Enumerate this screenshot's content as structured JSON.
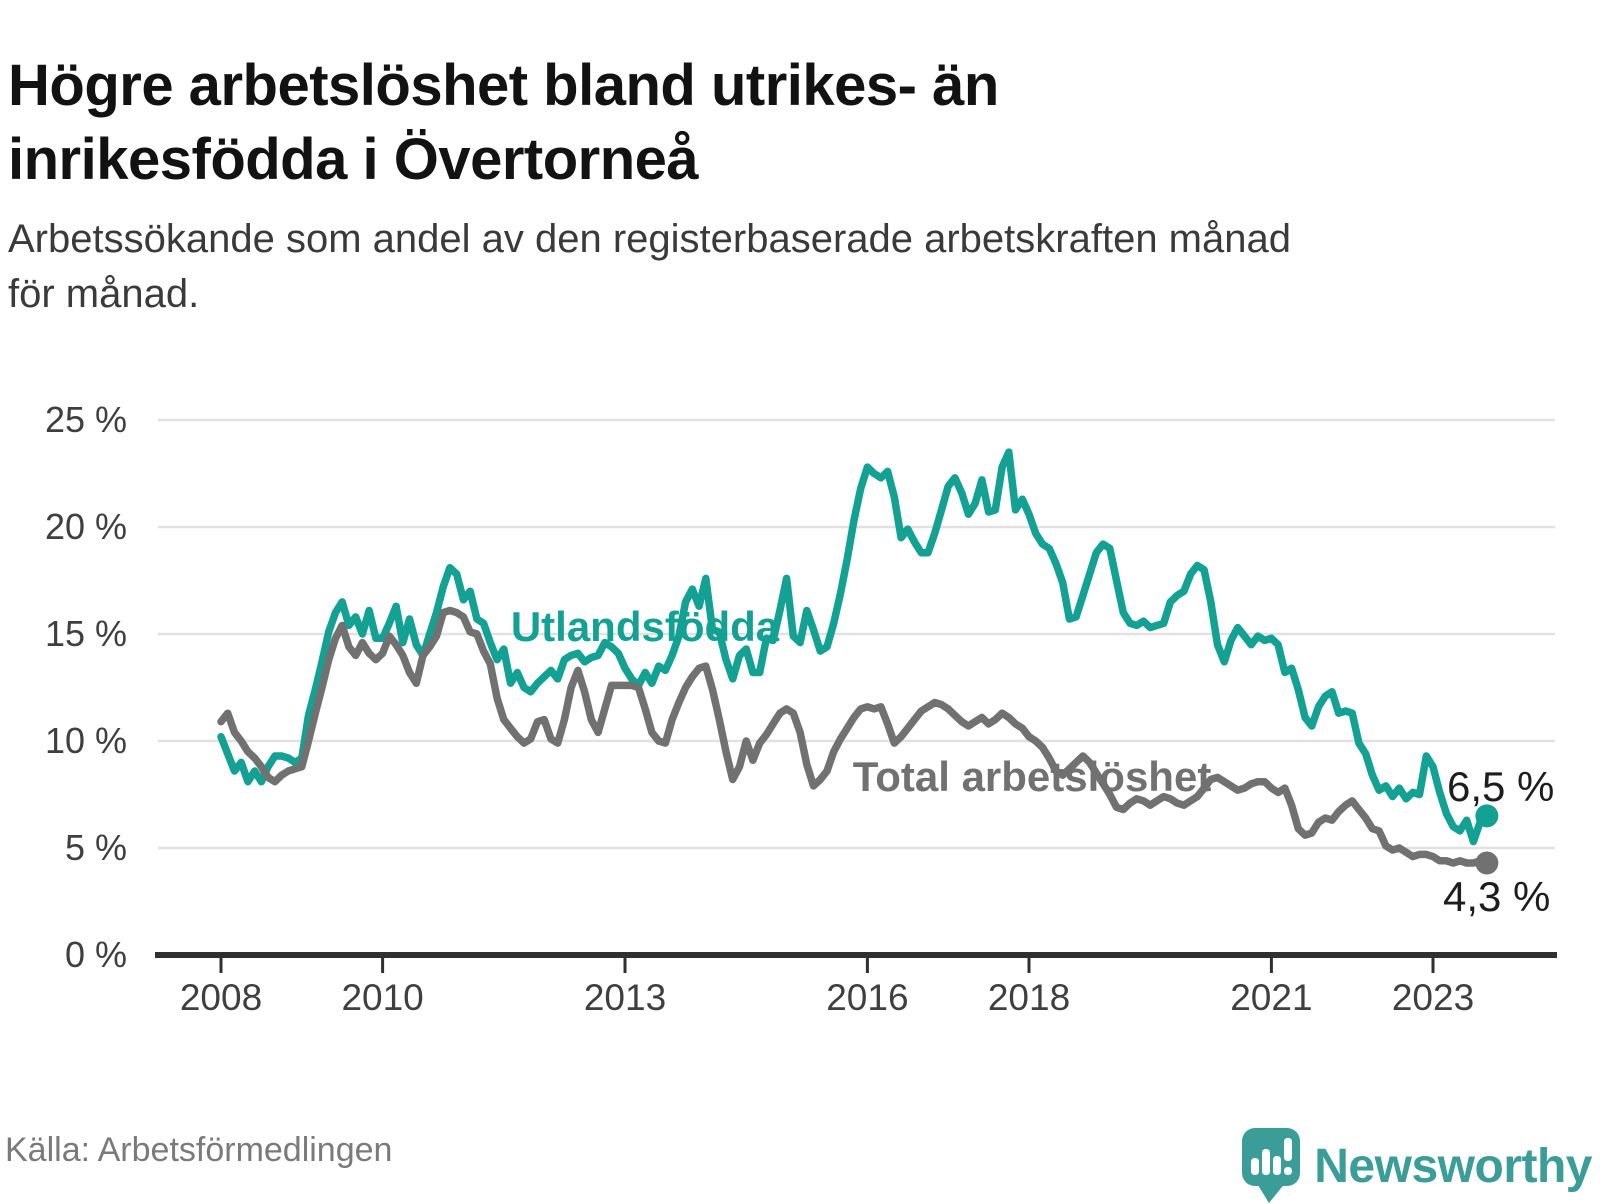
{
  "header": {
    "title_lines": [
      "Högre arbetslöshet bland utrikes- än",
      "inrikesfödda i Övertorneå"
    ],
    "subtitle_lines": [
      "Arbetssökande som andel av den registerbaserade arbetskraften månad",
      "för månad."
    ]
  },
  "footer": {
    "source": "Källa: Arbetsförmedlingen",
    "brand_name": "Newsworthy",
    "brand_icon": "newsworthy-speech-bubble-bar-chart-icon"
  },
  "colors": {
    "foreign_born_line": "#12a192",
    "total_line": "#717171",
    "gridline": "#e1e1e1",
    "axis": "#303030",
    "tick_label": "#3f3f3f",
    "end_label": "#1d1d1d",
    "brand_teal": "#3b9d97"
  },
  "chart_data": {
    "type": "line",
    "title": "Högre arbetslöshet bland utrikes- än inrikesfödda i Övertorneå",
    "subtitle": "Arbetssökande som andel av den registerbaserade arbetskraften månad för månad.",
    "unit": "%",
    "frequency": "monthly",
    "x_start": "2008-01",
    "x_end": "2023-09",
    "ylim": [
      0,
      25
    ],
    "grid": true,
    "legend": "inline-labels",
    "y_ticks": {
      "values": [
        0,
        5,
        10,
        15,
        20,
        25
      ],
      "labels": [
        "0 %",
        "5 %",
        "10 %",
        "15 %",
        "20 %",
        "25 %"
      ]
    },
    "x_ticks": {
      "values": [
        2008,
        2010,
        2013,
        2016,
        2018,
        2021,
        2023
      ],
      "labels": [
        "2008",
        "2010",
        "2013",
        "2016",
        "2018",
        "2021",
        "2023"
      ]
    },
    "series": [
      {
        "name": "Utlandsfödda",
        "color": "#12a192",
        "end_label": "6,5 %",
        "end_value": 6.5,
        "values": [
          10.2,
          9.4,
          8.6,
          9.0,
          8.1,
          8.6,
          8.1,
          8.8,
          9.3,
          9.3,
          9.2,
          9.0,
          9.2,
          11.2,
          12.4,
          13.7,
          15.1,
          16.0,
          16.5,
          15.4,
          15.8,
          15.0,
          16.1,
          14.8,
          14.8,
          15.5,
          16.3,
          14.6,
          15.7,
          14.5,
          14.0,
          15.0,
          16.0,
          17.2,
          18.1,
          17.8,
          16.6,
          17.0,
          15.7,
          15.5,
          14.6,
          13.8,
          14.3,
          12.7,
          13.2,
          12.5,
          12.3,
          12.7,
          13.0,
          13.3,
          12.9,
          13.8,
          14.0,
          14.1,
          13.7,
          13.9,
          14.0,
          14.6,
          14.4,
          14.1,
          13.4,
          12.9,
          12.6,
          13.2,
          12.7,
          13.5,
          13.3,
          14.0,
          14.9,
          16.5,
          17.1,
          16.3,
          17.6,
          15.2,
          15.1,
          13.8,
          12.9,
          14.0,
          14.3,
          13.2,
          13.2,
          14.8,
          14.7,
          16.1,
          17.6,
          14.9,
          14.6,
          16.1,
          15.2,
          14.2,
          14.4,
          15.5,
          16.9,
          18.5,
          20.3,
          21.8,
          22.8,
          22.5,
          22.3,
          22.6,
          21.4,
          19.5,
          19.9,
          19.3,
          18.8,
          18.8,
          19.7,
          20.8,
          21.9,
          22.3,
          21.6,
          20.6,
          21.1,
          22.2,
          20.7,
          20.8,
          22.8,
          23.5,
          20.8,
          21.3,
          20.6,
          19.7,
          19.2,
          19.0,
          18.3,
          17.4,
          15.7,
          15.8,
          16.8,
          17.8,
          18.8,
          19.2,
          19.0,
          17.5,
          16.0,
          15.5,
          15.4,
          15.6,
          15.3,
          15.4,
          15.5,
          16.5,
          16.8,
          17.0,
          17.8,
          18.2,
          18.0,
          16.5,
          14.5,
          13.7,
          14.7,
          15.3,
          14.9,
          14.5,
          14.9,
          14.7,
          14.8,
          14.5,
          13.2,
          13.4,
          12.4,
          11.1,
          10.7,
          11.6,
          12.1,
          12.3,
          11.3,
          11.4,
          11.3,
          9.9,
          9.4,
          8.4,
          7.7,
          7.9,
          7.4,
          7.8,
          7.3,
          7.6,
          7.5,
          9.3,
          8.8,
          7.6,
          6.6,
          6.0,
          5.8,
          6.3,
          5.3,
          6.2,
          6.5
        ]
      },
      {
        "name": "Total arbetslöshet",
        "color": "#717171",
        "end_label": "4,3 %",
        "end_value": 4.3,
        "values": [
          10.9,
          11.3,
          10.4,
          10.0,
          9.5,
          9.2,
          8.8,
          8.3,
          8.1,
          8.4,
          8.6,
          8.7,
          8.8,
          10.0,
          11.3,
          12.5,
          13.8,
          14.8,
          15.4,
          14.4,
          14.0,
          14.6,
          14.1,
          13.8,
          14.1,
          14.9,
          14.5,
          14.0,
          13.2,
          12.7,
          14.0,
          14.4,
          14.9,
          16.0,
          16.1,
          16.0,
          15.8,
          15.1,
          15.0,
          14.2,
          13.6,
          12.0,
          11.0,
          10.6,
          10.2,
          9.9,
          10.1,
          10.9,
          11.0,
          10.1,
          9.9,
          11.0,
          12.5,
          13.3,
          12.3,
          11.0,
          10.4,
          11.5,
          12.6,
          12.6,
          12.6,
          12.6,
          12.5,
          11.5,
          10.4,
          10.0,
          9.9,
          11.0,
          11.8,
          12.5,
          13.0,
          13.4,
          13.5,
          12.4,
          11.0,
          9.5,
          8.2,
          8.8,
          10.0,
          9.1,
          9.9,
          10.3,
          10.8,
          11.3,
          11.5,
          11.3,
          10.4,
          8.9,
          7.9,
          8.2,
          8.6,
          9.5,
          10.1,
          10.6,
          11.1,
          11.5,
          11.6,
          11.5,
          11.6,
          10.8,
          9.9,
          10.2,
          10.6,
          11.0,
          11.4,
          11.6,
          11.8,
          11.7,
          11.5,
          11.2,
          10.9,
          10.7,
          10.9,
          11.1,
          10.8,
          11.0,
          11.3,
          11.1,
          10.8,
          10.6,
          10.2,
          10.0,
          9.7,
          9.2,
          8.6,
          8.4,
          8.7,
          9.0,
          9.3,
          9.0,
          8.5,
          8.0,
          7.5,
          6.9,
          6.8,
          7.1,
          7.3,
          7.2,
          7.0,
          7.2,
          7.4,
          7.3,
          7.1,
          7.0,
          7.2,
          7.4,
          7.8,
          8.2,
          8.3,
          8.1,
          7.9,
          7.7,
          7.8,
          8.0,
          8.1,
          8.1,
          7.8,
          7.6,
          7.8,
          7.0,
          5.9,
          5.6,
          5.7,
          6.2,
          6.4,
          6.3,
          6.7,
          7.0,
          7.2,
          6.8,
          6.4,
          5.9,
          5.8,
          5.1,
          4.9,
          5.0,
          4.8,
          4.6,
          4.7,
          4.7,
          4.6,
          4.4,
          4.4,
          4.3,
          4.4,
          4.3,
          4.3,
          4.4,
          4.3
        ]
      }
    ]
  }
}
